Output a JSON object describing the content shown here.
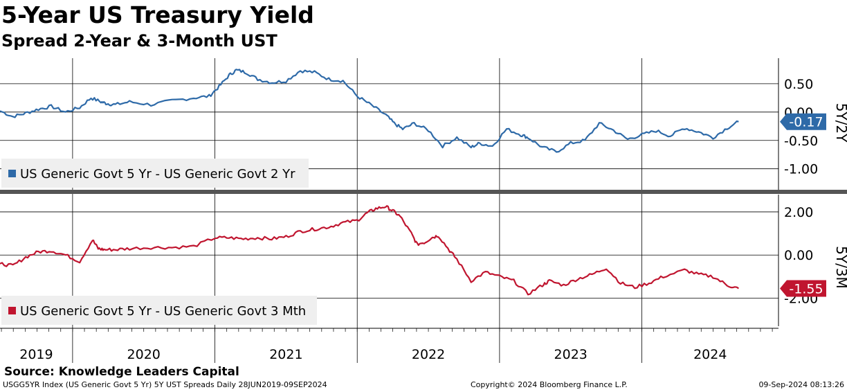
{
  "title": "5-Year US Treasury Yield",
  "subtitle": "Spread 2-Year & 3-Month UST",
  "source": "Source: Knowledge Leaders Capital",
  "footer": {
    "left": "USGG5YR Index (US Generic Govt 5 Yr) 5Y UST Spreads  Daily 28JUN2019-09SEP2024",
    "middle": "Copyright© 2024 Bloomberg Finance L.P.",
    "right": "09-Sep-2024 08:13:26"
  },
  "colors": {
    "top_series": "#2e6aa8",
    "bottom_series": "#c0152f",
    "grid": "#000000",
    "divider": "#555555"
  },
  "chart_data": [
    {
      "type": "line",
      "panel": "top",
      "axis_title": "5Y/2Y",
      "legend": "US Generic Govt 5 Yr - US Generic Govt 2 Yr",
      "last_value_label": "-0.17",
      "ylim": [
        -1.37,
        0.95
      ],
      "yticks": [
        0.5,
        0.0,
        -0.5,
        -1.0
      ],
      "ytick_labels": [
        "0.50",
        "0.00",
        "-0.50",
        "-1.00"
      ],
      "x": [
        2019.49,
        2019.58,
        2019.67,
        2019.76,
        2019.85,
        2019.95,
        2020.05,
        2020.13,
        2020.2,
        2020.24,
        2020.3,
        2020.4,
        2020.55,
        2020.7,
        2020.85,
        2020.96,
        2021.03,
        2021.1,
        2021.15,
        2021.22,
        2021.3,
        2021.4,
        2021.5,
        2021.6,
        2021.7,
        2021.8,
        2021.9,
        2022.0,
        2022.1,
        2022.2,
        2022.26,
        2022.32,
        2022.4,
        2022.5,
        2022.6,
        2022.7,
        2022.8,
        2022.86,
        2022.95,
        2023.05,
        2023.15,
        2023.2,
        2023.3,
        2023.4,
        2023.5,
        2023.6,
        2023.7,
        2023.8,
        2023.9,
        2024.0,
        2024.1,
        2024.2,
        2024.3,
        2024.4,
        2024.5,
        2024.6,
        2024.68
      ],
      "values": [
        0.02,
        -0.08,
        -0.02,
        0.05,
        0.1,
        0.0,
        0.08,
        0.25,
        0.18,
        0.15,
        0.13,
        0.18,
        0.13,
        0.2,
        0.25,
        0.28,
        0.45,
        0.65,
        0.74,
        0.7,
        0.58,
        0.52,
        0.55,
        0.73,
        0.7,
        0.58,
        0.55,
        0.28,
        0.12,
        -0.05,
        -0.2,
        -0.3,
        -0.2,
        -0.32,
        -0.6,
        -0.45,
        -0.62,
        -0.55,
        -0.6,
        -0.3,
        -0.4,
        -0.45,
        -0.62,
        -0.7,
        -0.55,
        -0.5,
        -0.2,
        -0.32,
        -0.48,
        -0.4,
        -0.33,
        -0.42,
        -0.28,
        -0.35,
        -0.45,
        -0.28,
        -0.17
      ]
    },
    {
      "type": "line",
      "panel": "bottom",
      "axis_title": "5Y/3M",
      "legend": "US Generic Govt 5 Yr - US Generic Govt 3 Mth",
      "last_value_label": "-1.55",
      "ylim": [
        -3.3,
        2.8
      ],
      "yticks": [
        2.0,
        0.0,
        -2.0
      ],
      "ytick_labels": [
        "2.00",
        "0.00",
        "-2.00"
      ],
      "x": [
        2019.49,
        2019.58,
        2019.67,
        2019.76,
        2019.85,
        2019.95,
        2020.05,
        2020.14,
        2020.18,
        2020.22,
        2020.3,
        2020.4,
        2020.55,
        2020.7,
        2020.85,
        2021.0,
        2021.1,
        2021.2,
        2021.3,
        2021.4,
        2021.5,
        2021.6,
        2021.7,
        2021.8,
        2021.9,
        2022.0,
        2022.07,
        2022.13,
        2022.2,
        2022.25,
        2022.3,
        2022.38,
        2022.42,
        2022.48,
        2022.52,
        2022.57,
        2022.65,
        2022.7,
        2022.8,
        2022.9,
        2023.0,
        2023.1,
        2023.2,
        2023.3,
        2023.35,
        2023.45,
        2023.55,
        2023.65,
        2023.75,
        2023.85,
        2023.95,
        2024.05,
        2024.15,
        2024.3,
        2024.4,
        2024.5,
        2024.6,
        2024.68
      ],
      "values": [
        -0.4,
        -0.5,
        -0.1,
        0.15,
        0.2,
        0.0,
        -0.3,
        0.7,
        0.3,
        0.25,
        0.25,
        0.3,
        0.35,
        0.35,
        0.4,
        0.8,
        0.8,
        0.75,
        0.8,
        0.75,
        0.85,
        1.1,
        1.2,
        1.3,
        1.5,
        1.6,
        1.95,
        2.15,
        2.25,
        2.05,
        1.8,
        1.0,
        0.5,
        0.6,
        0.8,
        0.9,
        0.2,
        -0.2,
        -1.2,
        -0.8,
        -1.0,
        -1.2,
        -1.8,
        -1.4,
        -1.2,
        -1.4,
        -1.1,
        -0.9,
        -0.6,
        -1.3,
        -1.5,
        -1.3,
        -1.0,
        -0.7,
        -0.9,
        -1.0,
        -1.4,
        -1.55
      ]
    }
  ],
  "x_axis": {
    "ticks": [
      "2019",
      "2020",
      "2021",
      "2022",
      "2023",
      "2024"
    ],
    "xlim": [
      2019.49,
      2024.96
    ]
  }
}
